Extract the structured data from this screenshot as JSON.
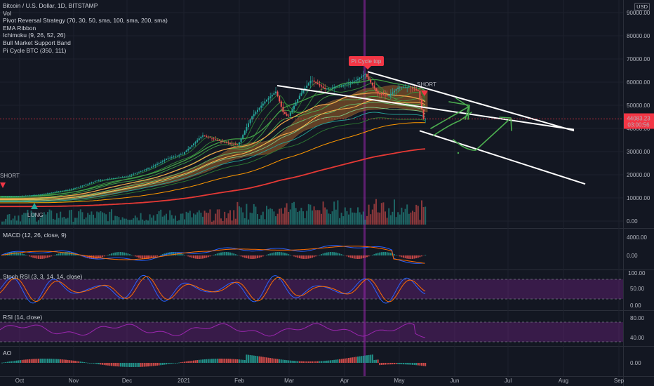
{
  "legend": {
    "symbol": "Bitcoin / U.S. Dollar, 1D, BITSTAMP",
    "indicators": [
      "Vol",
      "Pivot Reversal Strategy (70, 30, 50, sma, 100, sma, 200, sma)",
      "EMA Ribbon",
      "Ichimoku (9, 26, 52, 26)",
      "Bull Market Support Band",
      "Pi Cycle BTC (350, 111)"
    ]
  },
  "currency": "USD",
  "price_badge": {
    "price": "44083.23",
    "countdown": "03:00:56",
    "color": "#f23645"
  },
  "annotations": {
    "pi_cycle_top": "Pi Cycle top",
    "short_right": "SHORT",
    "short_left": "SHORT",
    "long_left": "LONG"
  },
  "panes": {
    "macd": "MACD (12, 26, close, 9)",
    "stoch": "Stoch RSI (3, 3, 14, 14, close)",
    "rsi": "RSI (14, close)",
    "ao": "AO"
  },
  "colors": {
    "background": "#131722",
    "up": "#26a69a",
    "down": "#ef5350",
    "purple": "#9c27b0",
    "white_line": "#ffffff",
    "green_arrow": "#4caf50"
  },
  "chart_data": {
    "type": "candlestick",
    "title": "Bitcoin / U.S. Dollar, 1D, BITSTAMP",
    "x_ticks": [
      "Oct",
      "Nov",
      "Dec",
      "2021",
      "Feb",
      "Mar",
      "Apr",
      "May",
      "Jun",
      "Jul",
      "Aug",
      "Sep"
    ],
    "y_ticks": [
      "90000.00",
      "80000.00",
      "70000.00",
      "60000.00",
      "50000.00",
      "40000.00",
      "30000.00",
      "20000.00",
      "10000.00",
      "0.00"
    ],
    "ylim": [
      0,
      95000
    ],
    "price_series_approx": [
      [
        "Oct",
        10600
      ],
      [
        "Nov",
        13800
      ],
      [
        "Dec",
        19200
      ],
      [
        "2021",
        29000
      ],
      [
        "Feb",
        33000
      ],
      [
        "Mar",
        45000
      ],
      [
        "Apr",
        58800
      ],
      [
        "May",
        57700
      ],
      [
        "May",
        44083
      ]
    ],
    "macd_ticks": [
      "4000.00",
      "0.00"
    ],
    "stoch_ticks": [
      "100.00",
      "50.00",
      "0.00"
    ],
    "rsi_ticks": [
      "80.00",
      "40.00"
    ],
    "ao_ticks": [
      "0.00"
    ]
  }
}
